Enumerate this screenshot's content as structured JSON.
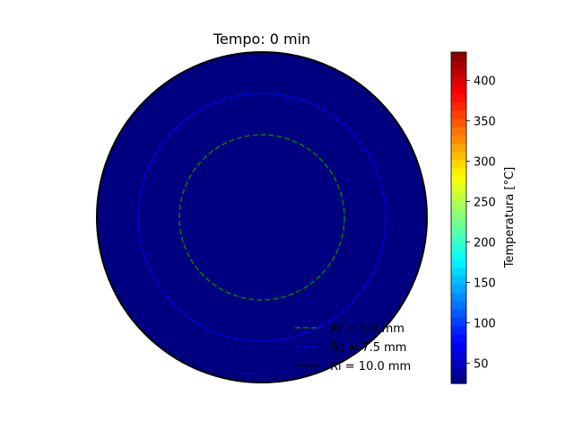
{
  "chart_data": {
    "type": "heatmap",
    "title": "Tempo: 0 min",
    "field_value_c": 25,
    "circles": [
      {
        "label": "Rf = 5.0 mm",
        "radius_mm": 5.0,
        "color": "#008000",
        "style": "dashed"
      },
      {
        "label": "Rc = 7.5 mm",
        "radius_mm": 7.5,
        "color": "#0000ff",
        "style": "dashed"
      },
      {
        "label": "Ri = 10.0 mm",
        "radius_mm": 10.0,
        "color": "#000000",
        "style": "solid"
      }
    ],
    "legend_position": "lower-right",
    "colorbar": {
      "label": "Temperatura [°C]",
      "range": [
        25,
        435
      ],
      "ticks": [
        50,
        100,
        150,
        200,
        250,
        300,
        350,
        400
      ],
      "colormap": "jet",
      "levels": 40
    }
  }
}
